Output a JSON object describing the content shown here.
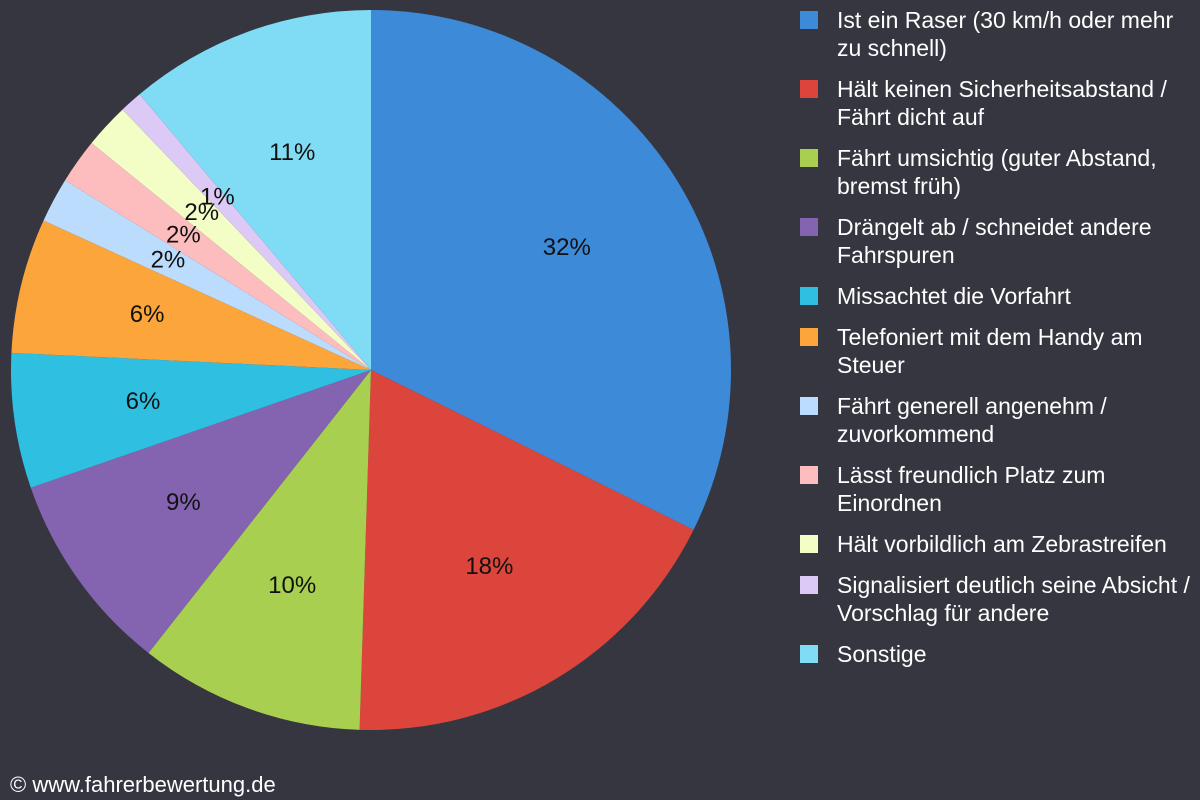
{
  "chart_data": {
    "type": "pie",
    "categories": [
      "Ist ein Raser (30 km/h oder mehr zu schnell)",
      "Hält keinen Sicherheitsabstand / Fährt dicht auf",
      "Fährt umsichtig (guter Abstand, bremst früh)",
      "Drängelt ab / schneidet andere Fahrspuren",
      "Missachtet die Vorfahrt",
      "Telefoniert mit dem Handy am Steuer",
      "Fährt generell angenehm / zuvorkommend",
      "Lässt freundlich Platz zum Einordnen",
      "Hält vorbildlich am Zebrastreifen",
      "Signalisiert deutlich seine Absicht / Vorschlag für andere",
      "Sonstige"
    ],
    "values": [
      32,
      18,
      10,
      9,
      6,
      6,
      2,
      2,
      2,
      1,
      11
    ],
    "value_labels": [
      "32%",
      "18%",
      "10%",
      "9%",
      "6%",
      "6%",
      "2%",
      "2%",
      "2%",
      "1%",
      "11%"
    ],
    "colors": [
      "#3d8ad8",
      "#dc453b",
      "#a8cf50",
      "#8463b1",
      "#2fbfe0",
      "#fba53a",
      "#bcdcfd",
      "#fdbcbd",
      "#f3fdc6",
      "#dcc9f5",
      "#80dcf5"
    ],
    "legend": "right",
    "footer": "© www.fahrerbewertung.de"
  }
}
